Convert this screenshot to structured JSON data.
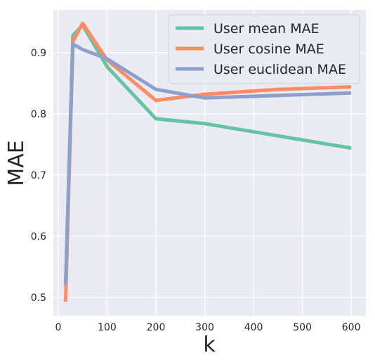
{
  "chart_data": {
    "type": "line",
    "title": "",
    "xlabel": "k",
    "ylabel": "MAE",
    "xlim": [
      -10,
      630
    ],
    "ylim": [
      0.47,
      0.97
    ],
    "xticks": [
      0,
      100,
      200,
      300,
      400,
      500,
      600
    ],
    "xtick_labels": [
      "0",
      "100",
      "200",
      "300",
      "400",
      "500",
      "600"
    ],
    "yticks": [
      0.5,
      0.6,
      0.7,
      0.8,
      0.9
    ],
    "ytick_labels": [
      "0.5",
      "0.6",
      "0.7",
      "0.8",
      "0.9"
    ],
    "grid": true,
    "legend_position": "top-right",
    "series": [
      {
        "name": "User mean MAE",
        "color": "#66c2a5",
        "x": [
          15,
          30,
          50,
          100,
          200,
          300,
          600
        ],
        "y": [
          0.52,
          0.928,
          0.945,
          0.877,
          0.792,
          0.784,
          0.744
        ]
      },
      {
        "name": "User cosine MAE",
        "color": "#fc8d62",
        "x": [
          15,
          30,
          50,
          100,
          200,
          300,
          450,
          600
        ],
        "y": [
          0.493,
          0.918,
          0.948,
          0.888,
          0.822,
          0.832,
          0.84,
          0.844
        ]
      },
      {
        "name": "User euclidean MAE",
        "color": "#8da0cb",
        "x": [
          15,
          30,
          50,
          100,
          200,
          300,
          450,
          600
        ],
        "y": [
          0.52,
          0.914,
          0.905,
          0.89,
          0.84,
          0.826,
          0.83,
          0.834
        ]
      }
    ]
  }
}
